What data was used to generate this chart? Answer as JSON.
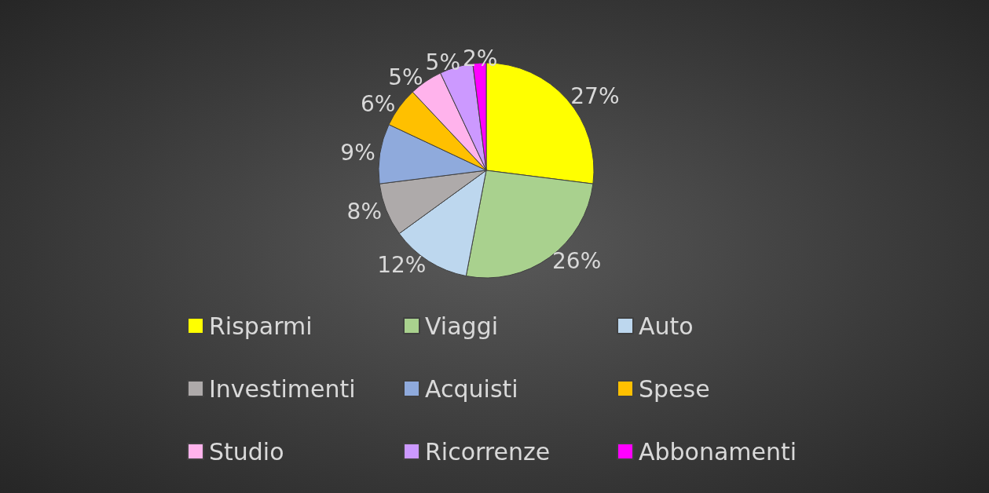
{
  "chart_data": {
    "type": "pie",
    "categories": [
      "Risparmi",
      "Viaggi",
      "Auto",
      "Investimenti",
      "Acquisti",
      "Spese",
      "Studio",
      "Ricorrenze",
      "Abbonamenti"
    ],
    "values": [
      27,
      26,
      12,
      8,
      9,
      6,
      5,
      5,
      2
    ],
    "value_labels": [
      "27%",
      "26%",
      "12%",
      "8%",
      "9%",
      "6%",
      "5%",
      "5%",
      "2%"
    ],
    "colors": [
      "#ffff00",
      "#a9d18e",
      "#bdd7ee",
      "#aeaaaa",
      "#8faadc",
      "#ffc000",
      "#ffb3ec",
      "#cc99ff",
      "#ff00ff"
    ],
    "legend": "bottom"
  }
}
